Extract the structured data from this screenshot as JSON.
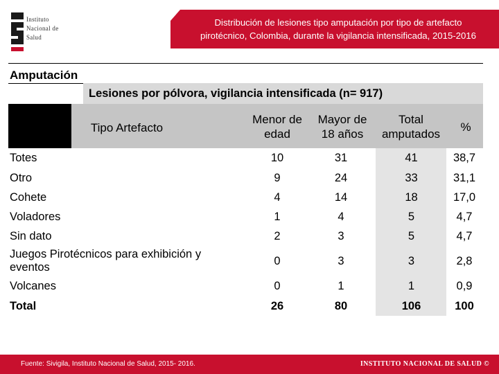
{
  "logo": {
    "line1": "Instituto",
    "line2": "Nacional de",
    "line3": "Salud"
  },
  "title": {
    "line1": "Distribución de lesiones tipo amputación por tipo de artefacto",
    "line2": "pirotécnico, Colombia, durante la vigilancia intensificada, 2015-2016"
  },
  "section_label": "Amputación",
  "table": {
    "title": "Lesiones por pólvora, vigilancia intensificada (n= 917)",
    "headers": {
      "tipo": "Tipo Artefacto",
      "menor_1": "Menor de",
      "menor_2": "edad",
      "mayor_1": "Mayor de",
      "mayor_2": "18 años",
      "total_1": "Total",
      "total_2": "amputados",
      "pct": "%"
    },
    "rows": [
      {
        "label": "Totes",
        "menor": "10",
        "mayor": "31",
        "total": "41",
        "pct": "38,7"
      },
      {
        "label": "Otro",
        "menor": "9",
        "mayor": "24",
        "total": "33",
        "pct": "31,1"
      },
      {
        "label": "Cohete",
        "menor": "4",
        "mayor": "14",
        "total": "18",
        "pct": "17,0"
      },
      {
        "label": "Voladores",
        "menor": "1",
        "mayor": "4",
        "total": "5",
        "pct": "4,7"
      },
      {
        "label": "Sin dato",
        "menor": "2",
        "mayor": "3",
        "total": "5",
        "pct": "4,7"
      },
      {
        "label_1": "Juegos Pirotécnicos para exhibición y",
        "label_2": "eventos",
        "menor": "0",
        "mayor": "3",
        "total": "3",
        "pct": "2,8"
      },
      {
        "label": "Volcanes",
        "menor": "0",
        "mayor": "1",
        "total": "1",
        "pct": "0,9"
      }
    ],
    "total_row": {
      "label": "Total",
      "menor": "26",
      "mayor": "80",
      "total": "106",
      "pct": "100"
    }
  },
  "footer": {
    "source": "Fuente: Sivigila, Instituto Nacional de Salud, 2015- 2016.",
    "brand": "INSTITUTO NACIONAL DE SALUD ©"
  },
  "colors": {
    "brand_red": "#c8102e",
    "header_gray": "#c5c5c5",
    "title_gray": "#d9d9d9",
    "total_col_gray": "#e4e4e4"
  }
}
